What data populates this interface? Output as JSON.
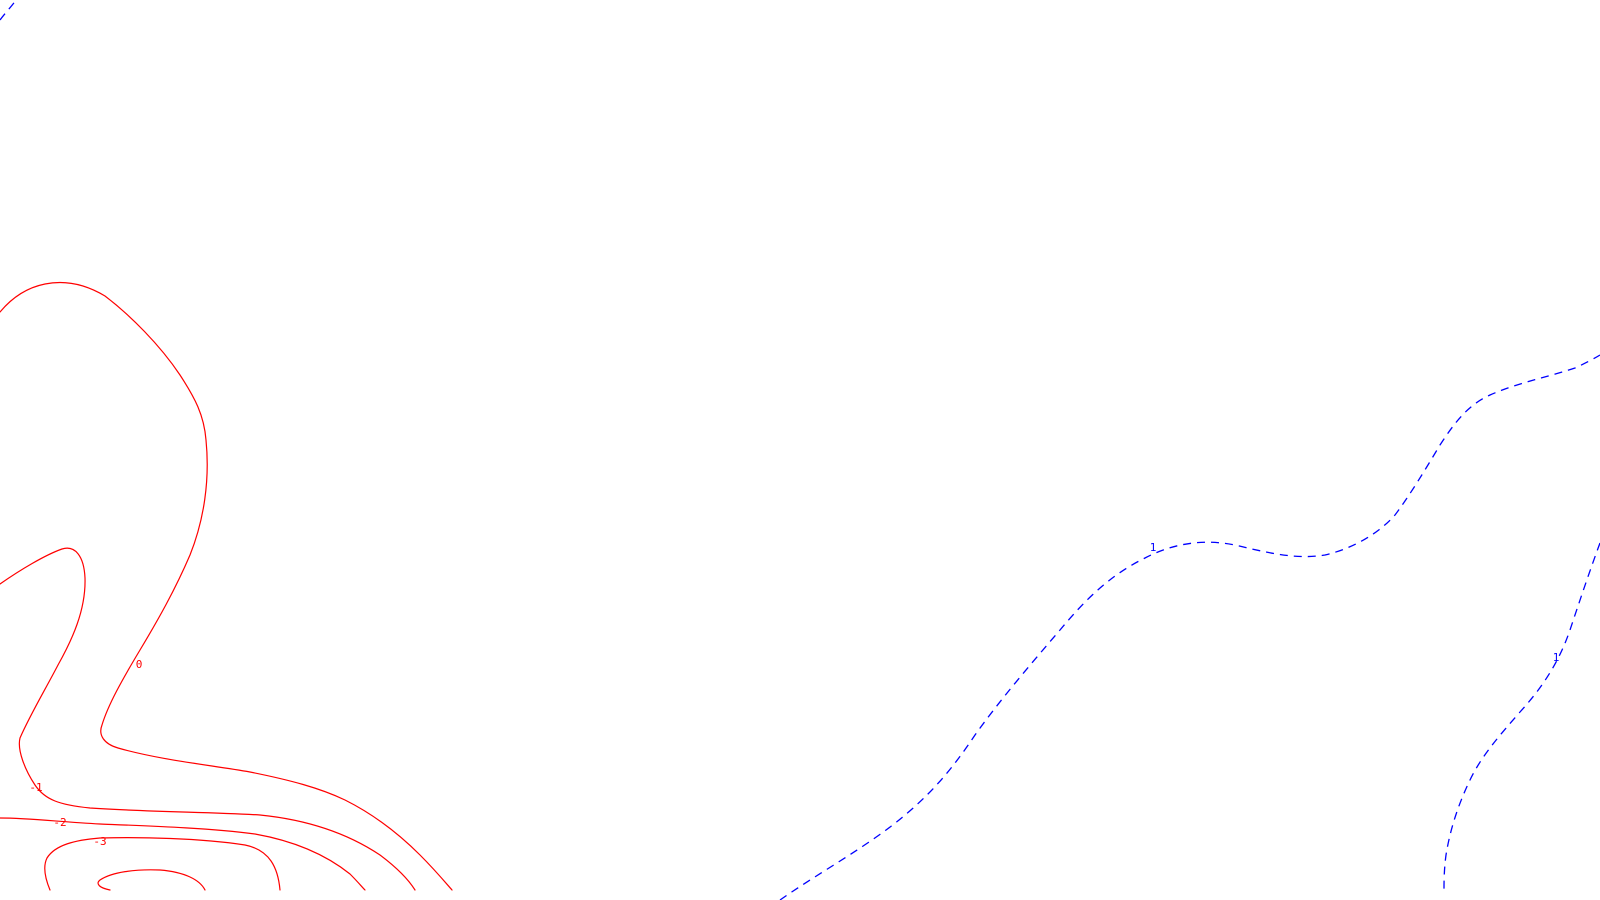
{
  "map": {
    "background": "#ffffff",
    "colors": {
      "negative_contour": "#ff0000",
      "positive_contour": "#0000ff"
    },
    "line_styles": {
      "negative_and_zero": "solid",
      "positive": "dashed"
    },
    "contours": [
      {
        "level": 0,
        "style": "solid",
        "color": "#ff0000",
        "label": "0"
      },
      {
        "level": -1,
        "style": "solid",
        "color": "#ff0000",
        "label": "-1"
      },
      {
        "level": -2,
        "style": "solid",
        "color": "#ff0000",
        "label": "-2"
      },
      {
        "level": -3,
        "style": "solid",
        "color": "#ff0000",
        "label": "-3"
      },
      {
        "level": -4,
        "style": "solid",
        "color": "#ff0000",
        "label": ""
      },
      {
        "level": 1,
        "style": "dashed",
        "color": "#0000ff",
        "label": "1"
      },
      {
        "level": 1,
        "style": "dashed",
        "color": "#0000ff",
        "label": "1"
      },
      {
        "level": 1,
        "style": "dashed",
        "color": "#0000ff",
        "label": ""
      }
    ]
  }
}
